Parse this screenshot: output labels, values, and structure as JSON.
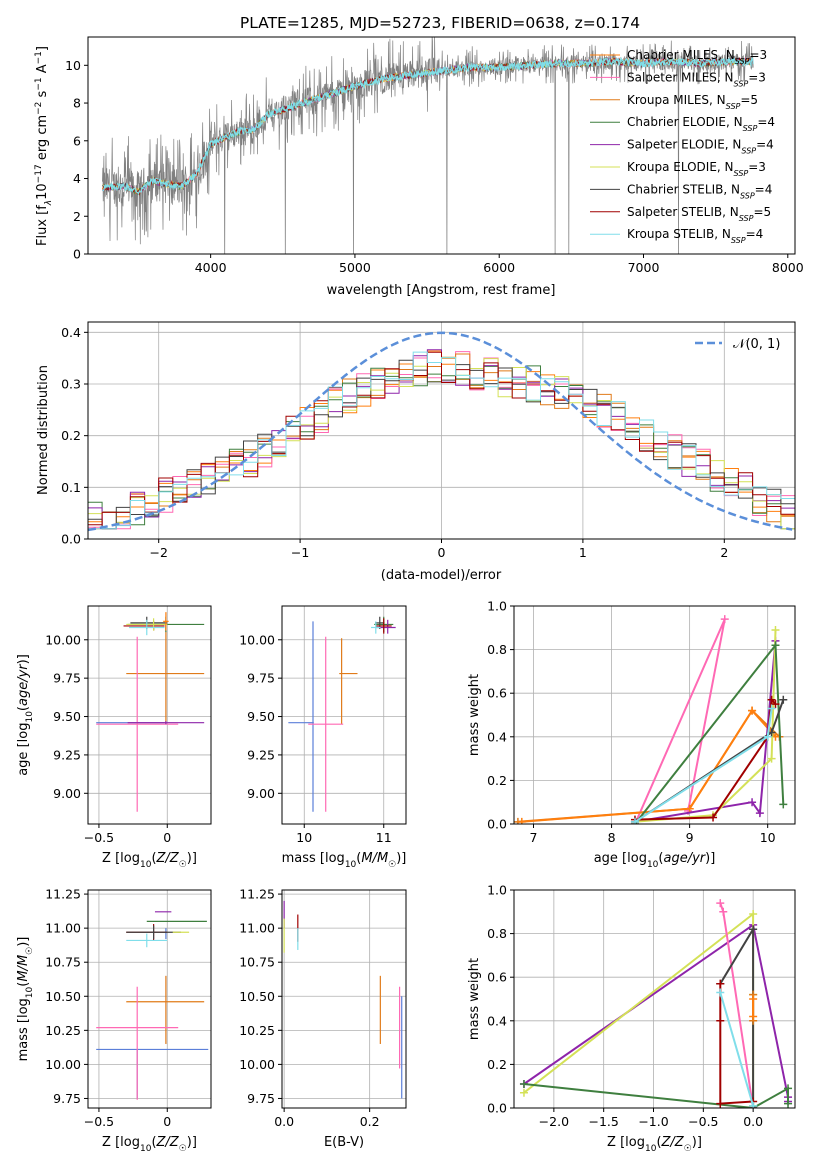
{
  "figure": {
    "title": "PLATE=1285, MJD=52723, FIBERID=0638, z=0.174"
  },
  "models": [
    {
      "id": "chabrier-miles",
      "name": "Chabrier MILES, N",
      "sub": "SSP",
      "val": "=3",
      "color": "#ff7f0e"
    },
    {
      "id": "salpeter-miles",
      "name": "Salpeter MILES, N",
      "sub": "SSP",
      "val": "=3",
      "color": "#ff69b4"
    },
    {
      "id": "kroupa-miles",
      "name": "Kroupa MILES, N",
      "sub": "SSP",
      "val": "=5",
      "color": "#e07b1a"
    },
    {
      "id": "chabrier-elodie",
      "name": "Chabrier ELODIE, N",
      "sub": "SSP",
      "val": "=4",
      "color": "#3f7f3f"
    },
    {
      "id": "salpeter-elodie",
      "name": "Salpeter ELODIE, N",
      "sub": "SSP",
      "val": "=4",
      "color": "#8e24aa"
    },
    {
      "id": "kroupa-elodie",
      "name": "Kroupa ELODIE, N",
      "sub": "SSP",
      "val": "=3",
      "color": "#d4e157"
    },
    {
      "id": "chabrier-stelib",
      "name": "Chabrier STELIB, N",
      "sub": "SSP",
      "val": "=4",
      "color": "#424242"
    },
    {
      "id": "salpeter-stelib",
      "name": "Salpeter STELIB, N",
      "sub": "SSP",
      "val": "=5",
      "color": "#a00000"
    },
    {
      "id": "kroupa-stelib",
      "name": "Kroupa STELIB, N",
      "sub": "SSP",
      "val": "=4",
      "color": "#80deea"
    }
  ],
  "chart_data": [
    {
      "id": "spectrum",
      "type": "line",
      "xlabel": "wavelength [Angstrom, rest frame]",
      "ylabel_parts": [
        "Flux [f",
        "λ",
        "10",
        "−17",
        " erg cm",
        "−2",
        " s",
        "−1",
        " A",
        "−1",
        "]"
      ],
      "xlim": [
        3150,
        8050
      ],
      "ylim": [
        0,
        11.5
      ],
      "xticks": [
        4000,
        5000,
        6000,
        7000,
        8000
      ],
      "yticks": [
        0,
        2,
        4,
        6,
        8,
        10
      ],
      "data_color": "#808080",
      "model_color": "#7fdfe8",
      "continuum": [
        [
          3250,
          3.5
        ],
        [
          3400,
          3.6
        ],
        [
          3500,
          3.3
        ],
        [
          3600,
          3.9
        ],
        [
          3700,
          3.7
        ],
        [
          3800,
          3.6
        ],
        [
          3900,
          4.2
        ],
        [
          4000,
          5.8
        ],
        [
          4100,
          6.2
        ],
        [
          4200,
          6.5
        ],
        [
          4300,
          6.6
        ],
        [
          4400,
          7.4
        ],
        [
          4600,
          7.9
        ],
        [
          4800,
          8.4
        ],
        [
          5000,
          8.9
        ],
        [
          5200,
          9.3
        ],
        [
          5400,
          9.5
        ],
        [
          5600,
          9.7
        ],
        [
          5800,
          9.9
        ],
        [
          6000,
          9.9
        ],
        [
          6200,
          10.0
        ],
        [
          6400,
          10.1
        ],
        [
          6600,
          10.1
        ],
        [
          6800,
          10.2
        ],
        [
          7000,
          10.1
        ],
        [
          7200,
          10.2
        ],
        [
          7400,
          10.1
        ],
        [
          7600,
          10.2
        ],
        [
          7760,
          10.2
        ]
      ],
      "grid": false,
      "legend": "upper right"
    },
    {
      "id": "residuals",
      "type": "histogram",
      "xlabel": "(data-model)/error",
      "ylabel": "Normed distribution",
      "xlim": [
        -2.5,
        2.5
      ],
      "ylim": [
        0,
        0.42
      ],
      "xticks": [
        -2,
        -1,
        0,
        1,
        2
      ],
      "yticks": [
        0.0,
        0.1,
        0.2,
        0.3,
        0.4
      ],
      "bin_width": 0.1,
      "base_values": [
        0.04,
        0.045,
        0.05,
        0.06,
        0.075,
        0.085,
        0.095,
        0.1,
        0.115,
        0.13,
        0.14,
        0.155,
        0.17,
        0.19,
        0.205,
        0.22,
        0.24,
        0.26,
        0.275,
        0.29,
        0.305,
        0.315,
        0.325,
        0.33,
        0.335,
        0.335,
        0.33,
        0.32,
        0.32,
        0.31,
        0.305,
        0.3,
        0.29,
        0.285,
        0.275,
        0.265,
        0.25,
        0.235,
        0.22,
        0.2,
        0.185,
        0.17,
        0.155,
        0.14,
        0.125,
        0.11,
        0.095,
        0.08,
        0.065,
        0.05
      ],
      "gaussian_label": "𝒩(0, 1)",
      "gaussian_color": "#5b8fd9",
      "grid": true
    },
    {
      "id": "age-vs-z",
      "type": "errorbar",
      "xlabel": "Z [log10(Z/Z☉)]",
      "ylabel": "age  [log10(age/yr)]",
      "xlim": [
        -0.58,
        0.32
      ],
      "ylim": [
        8.8,
        10.22
      ],
      "xticks": [
        -0.5,
        0.0
      ],
      "yticks": [
        9.0,
        9.25,
        9.5,
        9.75,
        10.0
      ],
      "points": [
        {
          "model": "kroupa-miles",
          "x": -0.01,
          "y": 9.78,
          "xerr": [
            0.29,
            0.28
          ],
          "yerr": [
            0.33,
            0.32
          ]
        },
        {
          "model": "salpeter-miles",
          "x": -0.22,
          "y": 9.45,
          "xerr": [
            0.3,
            0.3
          ],
          "yerr": [
            0.57,
            0.57
          ]
        },
        {
          "model": "salpeter-elodie",
          "x": -0.01,
          "y": 9.46,
          "xerr": [
            0.28,
            0.28
          ],
          "yerr": [
            0.01,
            0.01
          ]
        },
        {
          "model": "chabrier-elodie",
          "x": -0.01,
          "y": 10.1,
          "xerr": [
            0.28,
            0.28
          ],
          "yerr": [
            0.05,
            0.05
          ]
        },
        {
          "model": "chabrier-stelib",
          "x": -0.15,
          "y": 10.11,
          "xerr": [
            0.12,
            0.15
          ],
          "yerr": [
            0.04,
            0.04
          ]
        },
        {
          "model": "salpeter-stelib",
          "x": -0.1,
          "y": 10.09,
          "xerr": [
            0.22,
            0.08
          ],
          "yerr": [
            0.03,
            0.03
          ]
        },
        {
          "model": "kroupa-elodie",
          "x": -0.1,
          "y": 10.1,
          "xerr": [
            0.2,
            0.1
          ],
          "yerr": [
            0.04,
            0.04
          ]
        },
        {
          "model": "kroupa-stelib",
          "x": -0.15,
          "y": 10.08,
          "xerr": [
            0.13,
            0.13
          ],
          "yerr": [
            0.05,
            0.05
          ]
        },
        {
          "model": "chabrier-miles",
          "x": -0.01,
          "y": 10.12,
          "xerr": [
            0.02,
            0.02
          ],
          "yerr": [
            0.06,
            0.06
          ]
        }
      ],
      "extra_bars": [
        {
          "color": "#5b7fd9",
          "x1": -0.52,
          "x2": -0.02,
          "y1": 9.46,
          "y2": 9.46
        }
      ],
      "grid": true
    },
    {
      "id": "age-vs-mass",
      "type": "errorbar",
      "xlabel": "mass [log10(M/M☉)]",
      "ylabel": "",
      "xlim": [
        9.72,
        11.28
      ],
      "ylim": [
        8.8,
        10.22
      ],
      "xticks": [
        10,
        11
      ],
      "yticks": [
        9.0,
        9.25,
        9.5,
        9.75,
        10.0
      ],
      "points": [
        {
          "model": "kroupa-miles",
          "x": 10.47,
          "y": 9.78,
          "xerr": [
            0.03,
            0.2
          ],
          "yerr": [
            0.33,
            0.23
          ]
        },
        {
          "model": "salpeter-miles",
          "x": 10.27,
          "y": 9.45,
          "xerr": [
            0.22,
            0.22
          ],
          "yerr": [
            0.57,
            0.57
          ]
        },
        {
          "model": "chabrier-elodie",
          "x": 11.0,
          "y": 10.1,
          "xerr": [
            0.12,
            0.12
          ],
          "yerr": [
            0.05,
            0.05
          ]
        },
        {
          "model": "salpeter-elodie",
          "x": 11.05,
          "y": 10.08,
          "xerr": [
            0.15,
            0.1
          ],
          "yerr": [
            0.04,
            0.05
          ]
        },
        {
          "model": "chabrier-stelib",
          "x": 10.95,
          "y": 10.11,
          "xerr": [
            0.06,
            0.06
          ],
          "yerr": [
            0.04,
            0.04
          ]
        },
        {
          "model": "salpeter-stelib",
          "x": 11.0,
          "y": 10.09,
          "xerr": [
            0.1,
            0.1
          ],
          "yerr": [
            0.05,
            0.05
          ]
        },
        {
          "model": "kroupa-stelib",
          "x": 10.9,
          "y": 10.08,
          "xerr": [
            0.06,
            0.06
          ],
          "yerr": [
            0.04,
            0.04
          ]
        }
      ],
      "extra_bars": [
        {
          "color": "#5b7fd9",
          "x1": 9.8,
          "x2": 10.12,
          "y1": 9.46,
          "y2": 9.46
        },
        {
          "color": "#5b7fd9",
          "x1": 10.11,
          "x2": 10.11,
          "y1": 8.88,
          "y2": 10.12
        }
      ],
      "grid": true
    },
    {
      "id": "weight-vs-age",
      "type": "line",
      "xlabel": "age  [log10(age/yr)]",
      "ylabel": "mass weight",
      "xlim": [
        6.75,
        10.35
      ],
      "ylim": [
        0,
        1
      ],
      "xticks": [
        7,
        8,
        9,
        10
      ],
      "yticks": [
        0.0,
        0.2,
        0.4,
        0.6,
        0.8,
        1.0
      ],
      "series": [
        {
          "model": "kroupa-miles",
          "x": [
            6.8,
            9.0,
            9.8,
            10.15
          ],
          "y": [
            0.01,
            0.07,
            0.52,
            0.4
          ]
        },
        {
          "model": "salpeter-miles",
          "x": [
            8.3,
            9.45,
            8.98
          ],
          "y": [
            0.0,
            0.94,
            0.06
          ]
        },
        {
          "model": "chabrier-miles",
          "x": [
            6.85,
            9.0,
            9.8,
            10.1
          ],
          "y": [
            0.01,
            0.07,
            0.52,
            0.4
          ]
        },
        {
          "model": "salpeter-elodie",
          "x": [
            8.3,
            9.8,
            9.9,
            10.1
          ],
          "y": [
            0.01,
            0.1,
            0.05,
            0.84
          ]
        },
        {
          "model": "kroupa-elodie",
          "x": [
            8.3,
            9.3,
            10.05,
            10.1
          ],
          "y": [
            0.01,
            0.04,
            0.3,
            0.89
          ]
        },
        {
          "model": "chabrier-elodie",
          "x": [
            8.3,
            10.1,
            10.2
          ],
          "y": [
            0.0,
            0.82,
            0.09
          ]
        },
        {
          "model": "chabrier-stelib",
          "x": [
            8.3,
            10.05,
            10.2
          ],
          "y": [
            0.01,
            0.42,
            0.57
          ]
        },
        {
          "model": "salpeter-stelib",
          "x": [
            8.3,
            9.3,
            10.0,
            10.05,
            10.1
          ],
          "y": [
            0.02,
            0.03,
            0.4,
            0.57,
            0.55
          ]
        },
        {
          "model": "kroupa-stelib",
          "x": [
            8.3,
            10.0,
            10.05
          ],
          "y": [
            0.01,
            0.4,
            0.53
          ]
        }
      ],
      "grid": true
    },
    {
      "id": "mass-vs-z",
      "type": "errorbar",
      "xlabel": "Z [log10(Z/Z☉)]",
      "ylabel": "mass [log10(M/M☉)]",
      "xlim": [
        -0.58,
        0.32
      ],
      "ylim": [
        9.68,
        11.28
      ],
      "xticks": [
        -0.5,
        0.0
      ],
      "yticks": [
        9.75,
        10.0,
        10.25,
        10.5,
        10.75,
        11.0,
        11.25
      ],
      "points": [
        {
          "model": "kroupa-miles",
          "x": -0.01,
          "y": 10.46,
          "xerr": [
            0.29,
            0.28
          ],
          "yerr": [
            0.31,
            0.19
          ]
        },
        {
          "model": "salpeter-miles",
          "x": -0.22,
          "y": 10.27,
          "xerr": [
            0.3,
            0.3
          ],
          "yerr": [
            0.53,
            0.3
          ]
        },
        {
          "model": "salpeter-elodie",
          "x": 0.03,
          "y": 11.12,
          "xerr": [
            0.12,
            0.0
          ],
          "yerr": [
            0.0,
            0.0
          ]
        },
        {
          "model": "chabrier-elodie",
          "x": 0.05,
          "y": 11.05,
          "xerr": [
            0.2,
            0.24
          ],
          "yerr": [
            0.0,
            0.0
          ]
        },
        {
          "model": "salpeter-stelib",
          "x": -0.1,
          "y": 10.97,
          "xerr": [
            0.2,
            0.1
          ],
          "yerr": [
            0.06,
            0.06
          ]
        },
        {
          "model": "chabrier-stelib",
          "x": -0.1,
          "y": 10.97,
          "xerr": [
            0.2,
            0.2
          ],
          "yerr": [
            0.05,
            0.05
          ]
        },
        {
          "model": "kroupa-elodie",
          "x": 0.1,
          "y": 10.97,
          "xerr": [
            0.06,
            0.06
          ],
          "yerr": [
            0.0,
            0.0
          ]
        },
        {
          "model": "kroupa-stelib",
          "x": -0.15,
          "y": 10.91,
          "xerr": [
            0.15,
            0.15
          ],
          "yerr": [
            0.05,
            0.05
          ]
        }
      ],
      "extra_bars": [
        {
          "color": "#5b7fd9",
          "x1": -0.52,
          "x2": 0.3,
          "y1": 10.11,
          "y2": 10.11
        },
        {
          "color": "#5b7fd9",
          "x1": -0.22,
          "x2": -0.22,
          "y1": 9.75,
          "y2": 10.11
        },
        {
          "color": "#5b7fd9",
          "x1": -0.01,
          "x2": -0.01,
          "y1": 10.92,
          "y2": 11.0
        }
      ],
      "grid": true
    },
    {
      "id": "mass-vs-ebv",
      "type": "errorbar",
      "xlabel": "E(B-V)",
      "ylabel": "",
      "xlim": [
        -0.005,
        0.285
      ],
      "ylim": [
        9.68,
        11.28
      ],
      "xticks": [
        0.0,
        0.2
      ],
      "yticks": [
        9.75,
        10.0,
        10.25,
        10.5,
        10.75,
        11.0,
        11.25
      ],
      "points": [
        {
          "model": "kroupa-miles",
          "x": 0.225,
          "y": 10.4,
          "xerr": [
            0,
            0
          ],
          "yerr": [
            0.25,
            0.25
          ]
        },
        {
          "model": "salpeter-miles",
          "x": 0.27,
          "y": 10.27,
          "xerr": [
            0,
            0
          ],
          "yerr": [
            0.3,
            0.3
          ]
        },
        {
          "model": "salpeter-elodie",
          "x": 0.0,
          "y": 11.1,
          "xerr": [
            0,
            0
          ],
          "yerr": [
            0.1,
            0.1
          ]
        },
        {
          "model": "kroupa-elodie",
          "x": 0.0,
          "y": 10.97,
          "xerr": [
            0,
            0
          ],
          "yerr": [
            0.15,
            0.1
          ]
        },
        {
          "model": "salpeter-stelib",
          "x": 0.032,
          "y": 11.0,
          "xerr": [
            0,
            0
          ],
          "yerr": [
            0.1,
            0.1
          ]
        },
        {
          "model": "kroupa-stelib",
          "x": 0.032,
          "y": 10.92,
          "xerr": [
            0,
            0
          ],
          "yerr": [
            0.08,
            0.08
          ]
        }
      ],
      "extra_bars": [
        {
          "color": "#5b7fd9",
          "x1": 0.275,
          "x2": 0.275,
          "y1": 9.75,
          "y2": 10.5
        }
      ],
      "grid": true
    },
    {
      "id": "weight-vs-z",
      "type": "line",
      "xlabel": "Z [log10(Z/Z☉)]",
      "ylabel": "mass weight",
      "xlim": [
        -2.4,
        0.42
      ],
      "ylim": [
        0,
        1
      ],
      "xticks": [
        -2.0,
        -1.5,
        -1.0,
        -0.5,
        0.0
      ],
      "yticks": [
        0.0,
        0.2,
        0.4,
        0.6,
        0.8,
        1.0
      ],
      "series": [
        {
          "model": "salpeter-elodie",
          "x": [
            -2.3,
            0.0,
            0.35,
            0.35
          ],
          "y": [
            0.11,
            0.84,
            0.05,
            0.03
          ]
        },
        {
          "model": "kroupa-elodie",
          "x": [
            -2.3,
            0.0,
            0.0,
            0.0
          ],
          "y": [
            0.07,
            0.89,
            0.52,
            0.01
          ]
        },
        {
          "model": "chabrier-elodie",
          "x": [
            -2.3,
            0.0,
            0.35,
            0.35
          ],
          "y": [
            0.11,
            0.0,
            0.09,
            0.02
          ]
        },
        {
          "model": "salpeter-miles",
          "x": [
            -0.33,
            -0.3,
            0.0
          ],
          "y": [
            0.94,
            0.9,
            0.0
          ]
        },
        {
          "model": "chabrier-stelib",
          "x": [
            -0.33,
            0.0,
            0.0
          ],
          "y": [
            0.57,
            0.82,
            0.0
          ]
        },
        {
          "model": "salpeter-stelib",
          "x": [
            -0.33,
            -0.33,
            -0.33,
            0.0
          ],
          "y": [
            0.57,
            0.4,
            0.02,
            0.03
          ]
        },
        {
          "model": "kroupa-stelib",
          "x": [
            -0.33,
            0.0
          ],
          "y": [
            0.53,
            0.01
          ]
        },
        {
          "model": "kroupa-miles",
          "x": [
            0.0,
            0.0
          ],
          "y": [
            0.52,
            0.4
          ]
        },
        {
          "model": "chabrier-miles",
          "x": [
            0.0,
            0.0
          ],
          "y": [
            0.5,
            0.42
          ]
        }
      ],
      "grid": true
    }
  ]
}
